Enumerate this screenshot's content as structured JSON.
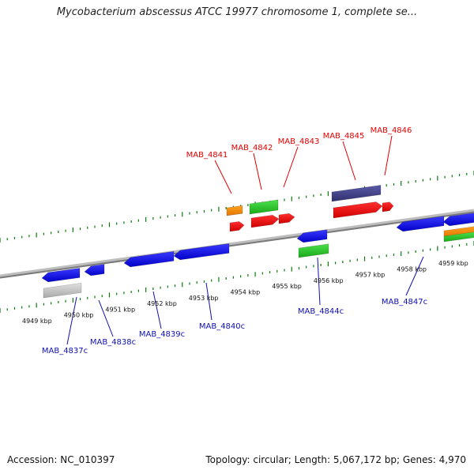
{
  "title": "Mycobacterium abscessus ATCC 19977 chromosome 1, complete se...",
  "footer": {
    "accession": "Accession: NC_010397",
    "topology": "Topology: circular; Length: 5,067,172 bp; Genes: 4,970"
  },
  "colors": {
    "forward_label": "#e00000",
    "reverse_label": "#1010b0",
    "tick": "#0a7a0a",
    "backbone": "#8c8c8c"
  },
  "scale_labels": [
    "4949 kbp",
    "4950 kbp",
    "4951 kbp",
    "4952 kbp",
    "4953 kbp",
    "4954 kbp",
    "4955 kbp",
    "4956 kbp",
    "4957 kbp",
    "4958 kbp",
    "4959 kbp"
  ],
  "forward_genes": [
    "MAB_4841",
    "MAB_4842",
    "MAB_4843",
    "MAB_4845",
    "MAB_4846"
  ],
  "reverse_genes": [
    "MAB_4837c",
    "MAB_4838c",
    "MAB_4839c",
    "MAB_4840c",
    "MAB_4844c",
    "MAB_4847c"
  ]
}
